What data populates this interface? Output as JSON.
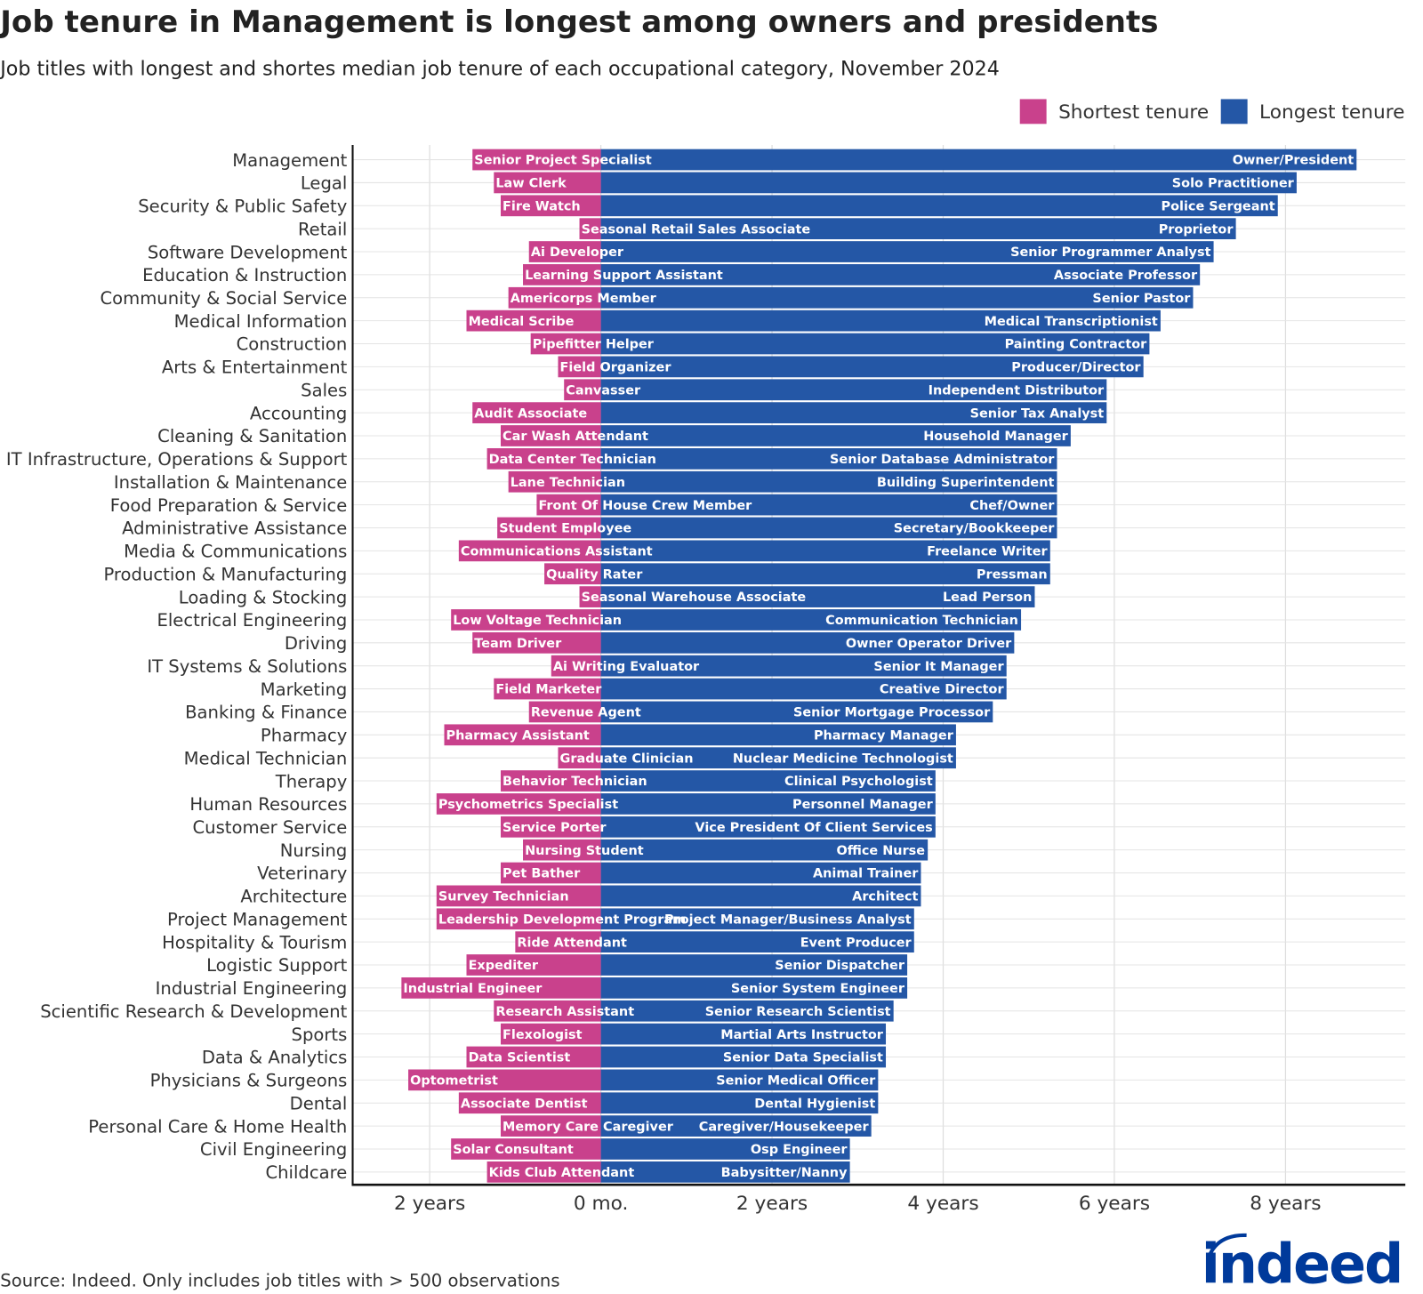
{
  "title": "Job tenure in Management is longest among owners and presidents",
  "subtitle": "Job titles with longest and shortes median job tenure of each occupational category, November 2024",
  "source": "Source: Indeed. Only includes job titles with > 500 observations",
  "logo": "indeed",
  "colors": {
    "shortest": "#C9418C",
    "longest": "#2457A6",
    "logo": "#003A9B"
  },
  "chart_data": {
    "type": "bar",
    "orientation": "horizontal-diverging",
    "xlim": [
      -2.9,
      9.4
    ],
    "x_unit": "years",
    "xticks": [
      {
        "value": -2,
        "label": "2 years"
      },
      {
        "value": 0,
        "label": "0 mo."
      },
      {
        "value": 2,
        "label": "2 years"
      },
      {
        "value": 4,
        "label": "4 years"
      },
      {
        "value": 6,
        "label": "6 years"
      },
      {
        "value": 8,
        "label": "8 years"
      }
    ],
    "grid": true,
    "legend_position": "top-right",
    "categories": [
      "Management",
      "Legal",
      "Security & Public Safety",
      "Retail",
      "Software Development",
      "Education & Instruction",
      "Community & Social Service",
      "Medical Information",
      "Construction",
      "Arts & Entertainment",
      "Sales",
      "Accounting",
      "Cleaning & Sanitation",
      "IT Infrastructure, Operations & Support",
      "Installation & Maintenance",
      "Food Preparation & Service",
      "Administrative Assistance",
      "Media & Communications",
      "Production & Manufacturing",
      "Loading & Stocking",
      "Electrical Engineering",
      "Driving",
      "IT Systems & Solutions",
      "Marketing",
      "Banking & Finance",
      "Pharmacy",
      "Medical Technician",
      "Therapy",
      "Human Resources",
      "Customer Service",
      "Nursing",
      "Veterinary",
      "Architecture",
      "Project Management",
      "Hospitality & Tourism",
      "Logistic Support",
      "Industrial Engineering",
      "Scientific Research & Development",
      "Sports",
      "Data & Analytics",
      "Physicians & Surgeons",
      "Dental",
      "Personal Care & Home Health",
      "Civil Engineering",
      "Childcare"
    ],
    "series": [
      {
        "name": "Shortest tenure",
        "titles": [
          "Senior Project Specialist",
          "Law Clerk",
          "Fire Watch",
          "Seasonal Retail Sales Associate",
          "Ai Developer",
          "Learning Support Assistant",
          "Americorps Member",
          "Medical Scribe",
          "Pipefitter Helper",
          "Field Organizer",
          "Canvasser",
          "Audit Associate",
          "Car Wash Attendant",
          "Data Center Technician",
          "Lane Technician",
          "Front Of House Crew Member",
          "Student Employee",
          "Communications Assistant",
          "Quality Rater",
          "Seasonal Warehouse Associate",
          "Low Voltage Technician",
          "Team Driver",
          "Ai Writing Evaluator",
          "Field Marketer",
          "Revenue Agent",
          "Pharmacy Assistant",
          "Graduate Clinician",
          "Behavior Technician",
          "Psychometrics Specialist",
          "Service Porter",
          "Nursing Student",
          "Pet Bather",
          "Survey Technician",
          "Leadership Development Program",
          "Ride Attendant",
          "Expediter",
          "Industrial Engineer",
          "Research Assistant",
          "Flexologist",
          "Data Scientist",
          "Optometrist",
          "Associate Dentist",
          "Memory Care Caregiver",
          "Solar Consultant",
          "Kids Club Attendant"
        ],
        "values": [
          1.5,
          1.25,
          1.17,
          0.25,
          0.84,
          0.91,
          1.08,
          1.57,
          0.82,
          0.5,
          0.43,
          1.5,
          1.17,
          1.33,
          1.08,
          0.75,
          1.21,
          1.66,
          0.66,
          0.25,
          1.75,
          1.5,
          0.58,
          1.25,
          0.84,
          1.83,
          0.5,
          1.17,
          1.92,
          1.17,
          0.91,
          1.17,
          1.92,
          1.92,
          1.0,
          1.57,
          2.33,
          1.25,
          1.17,
          1.57,
          2.25,
          1.66,
          1.17,
          1.75,
          1.33
        ]
      },
      {
        "name": "Longest tenure",
        "titles": [
          "Owner/President",
          "Solo Practitioner",
          "Police Sergeant",
          "Proprietor",
          "Senior Programmer Analyst",
          "Associate Professor",
          "Senior Pastor",
          "Medical Transcriptionist",
          "Painting Contractor",
          "Producer/Director",
          "Independent Distributor",
          "Senior Tax Analyst",
          "Household Manager",
          "Senior Database Administrator",
          "Building Superintendent",
          "Chef/Owner",
          "Secretary/Bookkeeper",
          "Freelance Writer",
          "Pressman",
          "Lead Person",
          "Communication Technician",
          "Owner Operator Driver",
          "Senior It Manager",
          "Creative Director",
          "Senior Mortgage Processor",
          "Pharmacy Manager",
          "Nuclear Medicine Technologist",
          "Clinical Psychologist",
          "Personnel Manager",
          "Vice President Of Client Services",
          "Office Nurse",
          "Animal Trainer",
          "Architect",
          "Project Manager/Business Analyst",
          "Event Producer",
          "Senior Dispatcher",
          "Senior System Engineer",
          "Senior Research Scientist",
          "Martial Arts Instructor",
          "Senior Data Specialist",
          "Senior Medical Officer",
          "Dental Hygienist",
          "Caregiver/Housekeeper",
          "Osp Engineer",
          "Babysitter/Nanny"
        ],
        "values": [
          8.83,
          8.13,
          7.91,
          7.42,
          7.16,
          7.0,
          6.92,
          6.54,
          6.41,
          6.34,
          5.91,
          5.91,
          5.49,
          5.33,
          5.33,
          5.33,
          5.33,
          5.25,
          5.25,
          5.07,
          4.91,
          4.83,
          4.74,
          4.74,
          4.58,
          4.15,
          4.15,
          3.91,
          3.91,
          3.91,
          3.82,
          3.74,
          3.74,
          3.66,
          3.66,
          3.58,
          3.58,
          3.42,
          3.33,
          3.33,
          3.24,
          3.24,
          3.16,
          2.91,
          2.91
        ]
      }
    ]
  }
}
